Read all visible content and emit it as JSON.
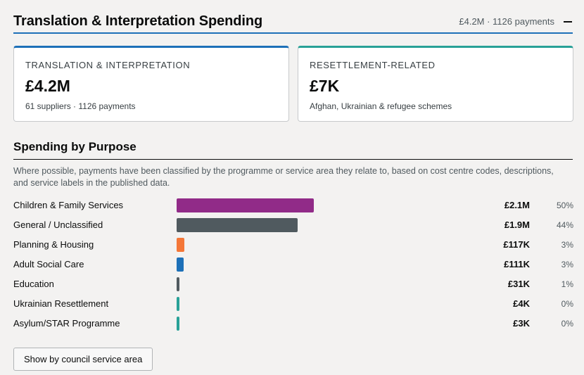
{
  "header": {
    "title": "Translation & Interpretation Spending",
    "summary": "£4.2M · 1126 payments"
  },
  "cards": [
    {
      "label": "TRANSLATION & INTERPRETATION",
      "value": "£4.2M",
      "sub": "61 suppliers · 1126 payments",
      "accent": "#1d70b8"
    },
    {
      "label": "RESETTLEMENT-RELATED",
      "value": "£7K",
      "sub": "Afghan, Ukrainian & refugee schemes",
      "accent": "#28a197"
    }
  ],
  "section": {
    "title": "Spending by Purpose",
    "description": "Where possible, payments have been classified by the programme or service area they relate to, based on cost centre codes, descriptions, and service labels in the published data."
  },
  "purposes": [
    {
      "label": "Children & Family Services",
      "amount": "£2.1M",
      "pct": "50%",
      "share": 0.5,
      "color": "#912b88"
    },
    {
      "label": "General / Unclassified",
      "amount": "£1.9M",
      "pct": "44%",
      "share": 0.44,
      "color": "#505a5f"
    },
    {
      "label": "Planning & Housing",
      "amount": "£117K",
      "pct": "3%",
      "share": 0.028,
      "color": "#f47738"
    },
    {
      "label": "Adult Social Care",
      "amount": "£111K",
      "pct": "3%",
      "share": 0.026,
      "color": "#1d70b8"
    },
    {
      "label": "Education",
      "amount": "£31K",
      "pct": "1%",
      "share": 0.007,
      "color": "#505a5f"
    },
    {
      "label": "Ukrainian Resettlement",
      "amount": "£4K",
      "pct": "0%",
      "share": 0.001,
      "color": "#28a197"
    },
    {
      "label": "Asylum/STAR Programme",
      "amount": "£3K",
      "pct": "0%",
      "share": 0.001,
      "color": "#28a197"
    }
  ],
  "toggle_button": {
    "label": "Show by council service area"
  }
}
